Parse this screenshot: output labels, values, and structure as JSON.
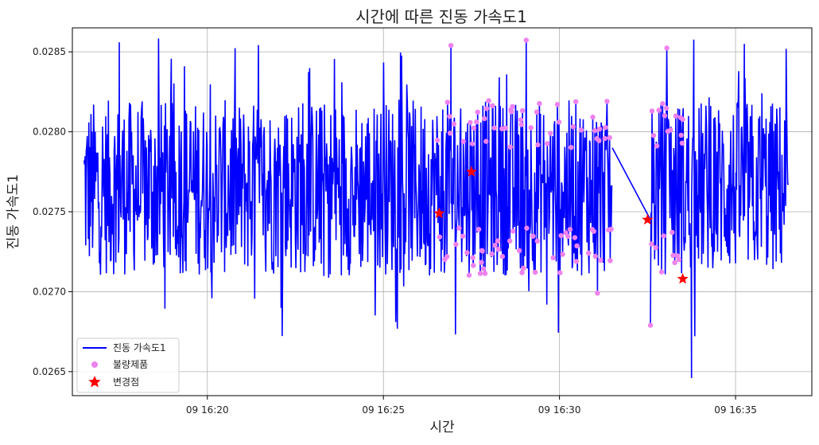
{
  "chart_data": {
    "type": "line",
    "title": "시간에 따른 진동 가속도1",
    "xlabel": "시간",
    "ylabel": "진동 가속도1",
    "x_range": [
      "09 16:16:10",
      "09 16:37:10"
    ],
    "ylim": [
      0.02635,
      0.02865
    ],
    "x_ticks": [
      "09 16:20",
      "09 16:25",
      "09 16:30",
      "09 16:35"
    ],
    "y_ticks": [
      "0.0265",
      "0.0270",
      "0.0275",
      "0.0280",
      "0.0285"
    ],
    "grid": true,
    "legend_position": "lower-left",
    "colors": {
      "line": "#0000ff",
      "defect": "#ee82ee",
      "change": "#ff0000"
    },
    "series": [
      {
        "name": "진동 가속도1",
        "type": "line"
      },
      {
        "name": "불량제품",
        "type": "scatter"
      },
      {
        "name": "변경점",
        "type": "scatter"
      }
    ],
    "line_segments": [
      {
        "start": "09 16:16:30",
        "end": "09 16:31:30",
        "mean": 0.02765
      },
      {
        "start": "09 16:32:35",
        "end": "09 16:36:30",
        "mean": 0.02765
      }
    ],
    "defect_range": [
      "09 16:26:30",
      "09 16:33:30"
    ],
    "change_points": [
      {
        "x": "09 16:26:35",
        "y": 0.02749
      },
      {
        "x": "09 16:27:30",
        "y": 0.02775
      },
      {
        "x": "09 16:32:30",
        "y": 0.02745
      },
      {
        "x": "09 16:33:30",
        "y": 0.02708
      }
    ],
    "notable_points": [
      {
        "x": "09 16:17:30",
        "y": 0.02856
      },
      {
        "x": "09 16:33:45",
        "y": 0.02646
      },
      {
        "x": "09 16:35:15",
        "y": 0.02855
      },
      {
        "x": "09 16:26:55",
        "y": 0.02854
      }
    ]
  }
}
